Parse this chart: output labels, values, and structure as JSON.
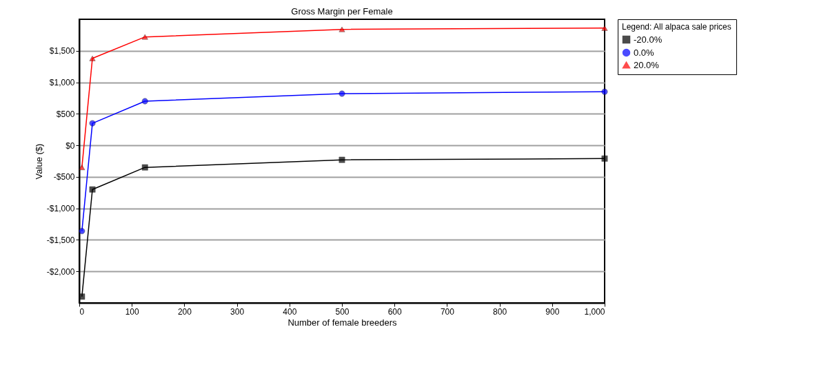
{
  "chart_data": {
    "type": "line",
    "title": "Gross Margin per Female",
    "xlabel": "Number of female breeders",
    "ylabel": "Value ($)",
    "legend_title": "Legend: All alpaca sale prices",
    "x": [
      5,
      25,
      125,
      500,
      1000
    ],
    "series": [
      {
        "name": "-20.0%",
        "color": "#000000",
        "marker": "square",
        "values": [
          -2400,
          -700,
          -350,
          -230,
          -210
        ]
      },
      {
        "name": "0.0%",
        "color": "#0000ff",
        "marker": "circle",
        "values": [
          -1360,
          350,
          700,
          820,
          850
        ]
      },
      {
        "name": "20.0%",
        "color": "#ff0000",
        "marker": "triangle",
        "values": [
          -350,
          1380,
          1720,
          1840,
          1860
        ]
      }
    ],
    "xlim": [
      0,
      1000
    ],
    "xticks": [
      0,
      100,
      200,
      300,
      400,
      500,
      600,
      700,
      800,
      900,
      {
        "value": 1000,
        "label": "1,000"
      }
    ],
    "ylim": [
      -2500,
      2000
    ],
    "yticks": [
      {
        "value": -2000,
        "label": "-$2,000"
      },
      {
        "value": -1500,
        "label": "-$1,500"
      },
      {
        "value": -1000,
        "label": "-$1,000"
      },
      {
        "value": -500,
        "label": "-$500"
      },
      {
        "value": 0,
        "label": "$0"
      },
      {
        "value": 500,
        "label": "$500"
      },
      {
        "value": 1000,
        "label": "$1,000"
      },
      {
        "value": 1500,
        "label": "$1,500"
      }
    ],
    "grid": "y",
    "legend": "top right",
    "line_style": "solid"
  }
}
